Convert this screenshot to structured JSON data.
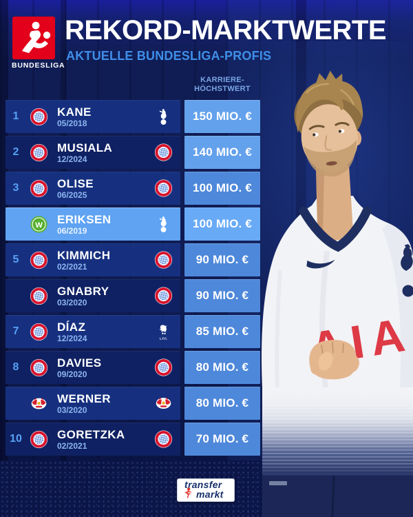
{
  "header": {
    "bundesliga_wordmark": "BUNDESLIGA",
    "title": "REKORD-MARKTWERTE",
    "subtitle": "AKTUELLE BUNDESLIGA-PROFIS"
  },
  "table": {
    "value_header_line1": "KARRIERE-",
    "value_header_line2": "HÖCHSTWERT",
    "rows": [
      {
        "rank": "1",
        "player": "KANE",
        "date": "05/2018",
        "current_club": "bayern",
        "record_club": "tottenham",
        "value": "150 MIO. €",
        "highlight": false
      },
      {
        "rank": "2",
        "player": "MUSIALA",
        "date": "12/2024",
        "current_club": "bayern",
        "record_club": "bayern",
        "value": "140 MIO. €",
        "highlight": false
      },
      {
        "rank": "3",
        "player": "OLISE",
        "date": "06/2025",
        "current_club": "bayern",
        "record_club": "bayern",
        "value": "100 MIO. €",
        "highlight": false
      },
      {
        "rank": "",
        "player": "ERIKSEN",
        "date": "06/2019",
        "current_club": "wolfsburg",
        "record_club": "tottenham",
        "value": "100 MIO. €",
        "highlight": true
      },
      {
        "rank": "5",
        "player": "KIMMICH",
        "date": "02/2021",
        "current_club": "bayern",
        "record_club": "bayern",
        "value": "90 MIO. €",
        "highlight": false
      },
      {
        "rank": "",
        "player": "GNABRY",
        "date": "03/2020",
        "current_club": "bayern",
        "record_club": "bayern",
        "value": "90 MIO. €",
        "highlight": false
      },
      {
        "rank": "7",
        "player": "DÍAZ",
        "date": "12/2024",
        "current_club": "bayern",
        "record_club": "liverpool",
        "value": "85 MIO. €",
        "highlight": false
      },
      {
        "rank": "8",
        "player": "DAVIES",
        "date": "09/2020",
        "current_club": "bayern",
        "record_club": "bayern",
        "value": "80 MIO. €",
        "highlight": false
      },
      {
        "rank": "",
        "player": "WERNER",
        "date": "03/2020",
        "current_club": "rb-leipzig",
        "record_club": "rb-leipzig",
        "value": "80 MIO. €",
        "highlight": false
      },
      {
        "rank": "10",
        "player": "GORETZKA",
        "date": "02/2021",
        "current_club": "bayern",
        "record_club": "bayern",
        "value": "70 MIO. €",
        "highlight": false
      }
    ]
  },
  "photo": {
    "shirt_sponsor": "AIA"
  },
  "footer": {
    "brand_line1": "transfer",
    "brand_line2": "markt"
  },
  "colors": {
    "background_top": "#1a1f9b",
    "background": "#0f1c52",
    "row_primary": "#16307f",
    "row_secondary": "#0f2162",
    "row_highlight": "#5fa3f2",
    "value_cell": "#4e88da",
    "value_cell_light": "#64a1ec",
    "value_cell_highlight": "#68aaf6",
    "rank_text": "#57a0f4",
    "date_text": "#8db6f0",
    "subtitle_text": "#3f8ee8",
    "column_header_text": "#7aa6e4",
    "bundesliga_red": "#e2001a",
    "tm_red": "#e0302a",
    "tm_navy": "#17306b"
  }
}
